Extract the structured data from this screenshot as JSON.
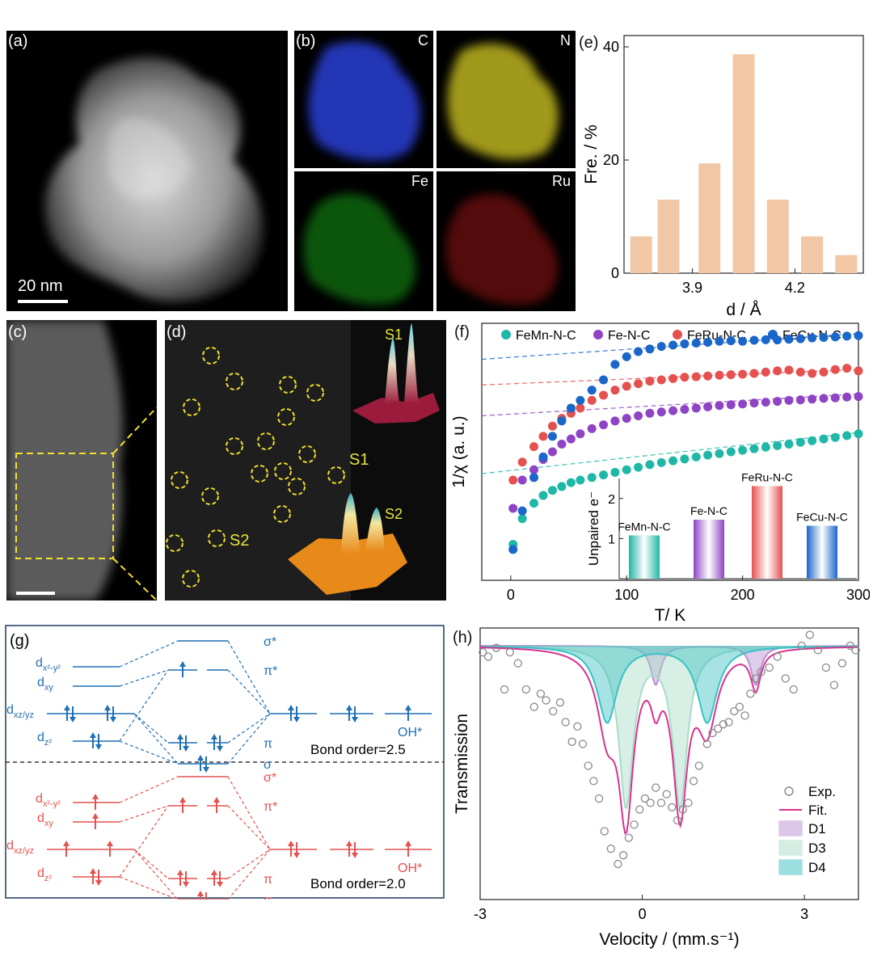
{
  "panels": {
    "a": {
      "label": "(a)",
      "scale": "20 nm"
    },
    "b": {
      "label": "(b)",
      "maps": [
        "C",
        "N",
        "Fe",
        "Ru"
      ]
    },
    "c": {
      "label": "(c)"
    },
    "d": {
      "label": "(d)",
      "sites": [
        "S1",
        "S2"
      ],
      "peaks": [
        "S1",
        "S2"
      ]
    },
    "g": {
      "label": "(g)",
      "orbitals": {
        "dx2y2": "d",
        "dx2y2_sub": "x²-y²",
        "dxy": "d",
        "dxy_sub": "xy",
        "dxzyz": "d",
        "dxzyz_sub": "xz/yz",
        "dz2": "d",
        "dz2_sub": "z²"
      },
      "mo": {
        "sigma_star": "σ*",
        "pi_star": "π*",
        "pi": "π",
        "sigma": "σ"
      },
      "adsorbate": "OH*",
      "top_bond_order": "Bond order=2.5",
      "bottom_bond_order": "Bond order=2.0",
      "colors": {
        "top": "#1f6fb4",
        "bottom": "#e5514f"
      }
    }
  },
  "chart_data": [
    {
      "id": "e",
      "label": "(e)",
      "type": "bar",
      "categories": [
        3.75,
        3.83,
        3.95,
        4.05,
        4.15,
        4.25,
        4.35
      ],
      "values": [
        6.5,
        13,
        19.4,
        38.7,
        13,
        6.5,
        3.2
      ],
      "xlabel": "d / Å",
      "ylabel": "Fre. / %",
      "xticks": [
        "3.9",
        "4.2"
      ],
      "yticks": [
        "0",
        "20",
        "40"
      ],
      "xlim": [
        3.7,
        4.4
      ],
      "ylim": [
        0,
        42
      ],
      "color": "#f2c7a6"
    },
    {
      "id": "f",
      "label": "(f)",
      "type": "scatter",
      "xlabel": "T/ K",
      "ylabel": "1/χ (a. u.)",
      "xlim": [
        -25,
        300
      ],
      "ylim": [
        0,
        100
      ],
      "xticks": [
        "0",
        "100",
        "200",
        "300"
      ],
      "series": [
        {
          "name": "FeMn-N-C",
          "color": "#1fb7a6",
          "x": [
            2,
            10,
            20,
            28,
            36,
            44,
            52,
            60,
            70,
            80,
            90,
            100,
            110,
            120,
            130,
            140,
            150,
            160,
            170,
            180,
            190,
            200,
            210,
            220,
            230,
            240,
            250,
            260,
            270,
            280,
            290,
            300
          ],
          "y": [
            14,
            24,
            30,
            33,
            35,
            36.5,
            38,
            39,
            40,
            41,
            42,
            43,
            44,
            45,
            45.8,
            46.5,
            47.2,
            48,
            48.7,
            49.3,
            50,
            50.6,
            51.2,
            51.8,
            52.4,
            53,
            53.7,
            54.3,
            55,
            55.6,
            56.3,
            57
          ]
        },
        {
          "name": "Fe-N-C",
          "color": "#8e44c4",
          "x": [
            2,
            10,
            20,
            28,
            36,
            44,
            52,
            60,
            70,
            80,
            90,
            100,
            110,
            120,
            130,
            140,
            150,
            160,
            170,
            180,
            190,
            200,
            210,
            220,
            230,
            240,
            250,
            260,
            270,
            280,
            290,
            300
          ],
          "y": [
            28,
            39,
            43,
            47,
            50,
            53,
            55,
            57,
            59,
            60.5,
            62,
            63,
            64,
            65,
            65.5,
            66,
            66.5,
            67,
            67.5,
            68,
            68.3,
            68.6,
            69,
            69.3,
            69.6,
            70,
            70.2,
            70.5,
            70.8,
            71,
            71.3,
            71.5
          ]
        },
        {
          "name": "FeRu-N-C",
          "color": "#e5514f",
          "x": [
            2,
            10,
            20,
            28,
            36,
            44,
            52,
            60,
            70,
            80,
            90,
            100,
            110,
            120,
            130,
            140,
            150,
            160,
            170,
            180,
            190,
            200,
            210,
            220,
            230,
            240,
            250,
            260,
            270,
            280,
            290,
            300
          ],
          "y": [
            39,
            46,
            52,
            56,
            60,
            63,
            65,
            67,
            70,
            72,
            74,
            75.5,
            76.5,
            77.5,
            78,
            78.5,
            79,
            79.2,
            79.5,
            79.8,
            80,
            80.2,
            80.5,
            81,
            81.5,
            81.8,
            81,
            80.5,
            81,
            82,
            82.5,
            81.5
          ]
        },
        {
          "name": "FeCu-N-C",
          "color": "#1a66c9",
          "x": [
            2,
            10,
            20,
            28,
            36,
            44,
            52,
            60,
            70,
            80,
            90,
            100,
            110,
            120,
            130,
            140,
            150,
            160,
            170,
            180,
            190,
            200,
            210,
            220,
            230,
            240,
            250,
            260,
            270,
            280,
            290,
            300
          ],
          "y": [
            12,
            27,
            40,
            48,
            56,
            62,
            67,
            70,
            74,
            78,
            84,
            87,
            89,
            90,
            91,
            91.5,
            92,
            92.3,
            92.6,
            93,
            93.2,
            93,
            93.4,
            93.6,
            93.5,
            93.8,
            94,
            94.3,
            94.5,
            94.7,
            95,
            95.2
          ]
        }
      ],
      "inset": {
        "ylabel": "Unpaired e⁻",
        "yticks": [
          "1",
          "2"
        ],
        "ylim": [
          0,
          2.5
        ],
        "categories": [
          "FeMn-N-C",
          "Fe-N-C",
          "FeRu-N-C",
          "FeCu-N-C"
        ],
        "values": [
          1.08,
          1.47,
          2.31,
          1.32
        ],
        "colors": [
          "#1fb7a6",
          "#8e44c4",
          "#e5514f",
          "#1a66c9"
        ]
      }
    },
    {
      "id": "h",
      "label": "(h)",
      "type": "line",
      "xlabel": "Velocity / (mm.s⁻¹)",
      "ylabel": "Transmission",
      "xlim": [
        -3,
        4
      ],
      "xticks": [
        "-3",
        "0",
        "3"
      ],
      "legend": [
        "Exp.",
        "Fit.",
        "D1",
        "D3",
        "D4"
      ],
      "components": [
        {
          "name": "D1",
          "centers": [
            0.25,
            2.1
          ],
          "depth": 0.18,
          "width": 0.11,
          "color": "#b98fd0"
        },
        {
          "name": "D3",
          "centers": [
            -0.3,
            0.7
          ],
          "depth": 0.73,
          "width": 0.16,
          "color": "#a9dcc6"
        },
        {
          "name": "D4",
          "centers": [
            -0.65,
            1.2
          ],
          "depth": 0.35,
          "width": 0.22,
          "color": "#3cc0c4"
        }
      ],
      "exp_points": {
        "x": [
          -2.95,
          -2.85,
          -2.7,
          -2.55,
          -2.45,
          -2.3,
          -2.15,
          -2.0,
          -1.88,
          -1.78,
          -1.65,
          -1.52,
          -1.42,
          -1.3,
          -1.2,
          -1.1,
          -1.0,
          -0.9,
          -0.8,
          -0.7,
          -0.58,
          -0.45,
          -0.35,
          -0.25,
          -0.15,
          -0.05,
          0.05,
          0.15,
          0.25,
          0.35,
          0.45,
          0.55,
          0.65,
          0.75,
          0.85,
          0.95,
          1.05,
          1.2,
          1.3,
          1.4,
          1.5,
          1.6,
          1.7,
          1.8,
          1.9,
          2.0,
          2.1,
          2.2,
          2.35,
          2.5,
          2.65,
          2.8,
          2.95,
          3.1,
          3.25,
          3.4,
          3.55,
          3.7,
          3.85,
          3.95
        ],
        "y": [
          0.03,
          0.05,
          0.01,
          0.2,
          0.03,
          0.08,
          0.2,
          0.28,
          0.22,
          0.25,
          0.3,
          0.26,
          0.35,
          0.44,
          0.37,
          0.45,
          0.55,
          0.62,
          0.7,
          0.85,
          0.93,
          1.0,
          0.96,
          0.88,
          0.82,
          0.75,
          0.7,
          0.72,
          0.65,
          0.72,
          0.68,
          0.74,
          0.8,
          0.75,
          0.72,
          0.62,
          0.55,
          0.45,
          0.4,
          0.38,
          0.36,
          0.35,
          0.3,
          0.28,
          0.32,
          0.22,
          0.15,
          0.12,
          0.1,
          0.05,
          0.15,
          0.2,
          0.0,
          -0.05,
          0.02,
          0.1,
          0.18,
          0.08,
          0.0,
          0.02
        ]
      }
    }
  ]
}
